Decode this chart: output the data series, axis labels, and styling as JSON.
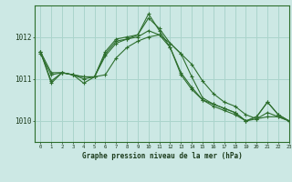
{
  "title": "Graphe pression niveau de la mer (hPa)",
  "background_color": "#cce8e4",
  "grid_color": "#aad4cc",
  "line_color": "#2d6e2d",
  "text_color": "#1a3a1a",
  "xlim": [
    -0.5,
    23
  ],
  "ylim": [
    1009.5,
    1012.75
  ],
  "yticks": [
    1010,
    1011,
    1012
  ],
  "xticks": [
    0,
    1,
    2,
    3,
    4,
    5,
    6,
    7,
    8,
    9,
    10,
    11,
    12,
    13,
    14,
    15,
    16,
    17,
    18,
    19,
    20,
    21,
    22,
    23
  ],
  "series": [
    [
      1011.65,
      1010.95,
      1011.15,
      1011.1,
      1010.9,
      1011.05,
      1011.1,
      1011.5,
      1011.75,
      1011.9,
      1012.0,
      1012.05,
      1011.85,
      1011.6,
      1011.35,
      1010.95,
      1010.65,
      1010.45,
      1010.35,
      1010.15,
      1010.05,
      1010.1,
      1010.1,
      1010.0
    ],
    [
      1011.6,
      1011.1,
      1011.15,
      1011.1,
      1011.05,
      1011.05,
      1011.55,
      1011.85,
      1011.95,
      1012.0,
      1012.15,
      1012.05,
      1011.75,
      1011.1,
      1010.75,
      1010.5,
      1010.4,
      1010.3,
      1010.2,
      1010.0,
      1010.05,
      1010.2,
      1010.1,
      1010.0
    ],
    [
      1011.65,
      1011.15,
      1011.15,
      1011.1,
      1011.05,
      1011.05,
      1011.6,
      1011.9,
      1011.95,
      1012.05,
      1012.45,
      1012.2,
      1011.85,
      1011.6,
      1011.05,
      1010.55,
      1010.4,
      1010.3,
      1010.2,
      1010.0,
      1010.1,
      1010.45,
      1010.15,
      1010.0
    ],
    [
      1011.65,
      1010.9,
      1011.15,
      1011.1,
      1011.0,
      1011.05,
      1011.65,
      1011.95,
      1012.0,
      1012.05,
      1012.55,
      1012.15,
      1011.75,
      1011.15,
      1010.8,
      1010.5,
      1010.35,
      1010.25,
      1010.15,
      1010.0,
      1010.1,
      1010.45,
      1010.15,
      1010.0
    ]
  ],
  "figsize": [
    3.2,
    2.0
  ],
  "dpi": 100
}
